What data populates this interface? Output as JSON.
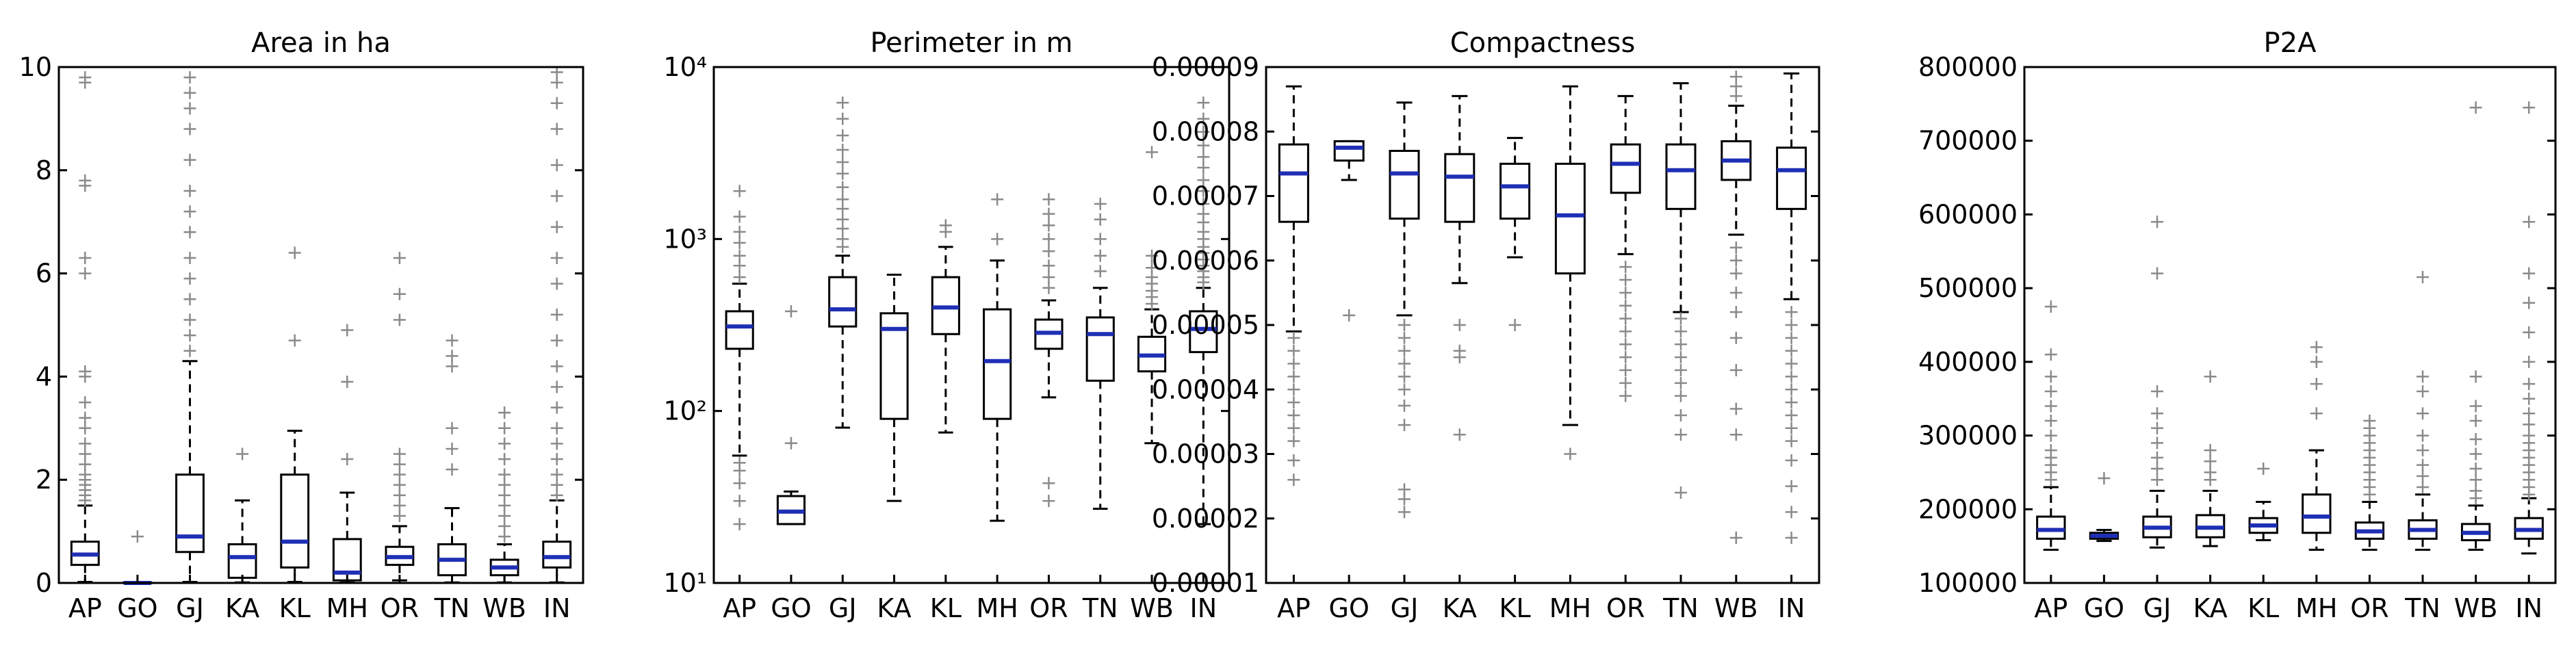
{
  "chart_data": [
    {
      "type": "boxplot",
      "title": "Area in ha",
      "scale": "linear",
      "ylim": [
        0,
        10
      ],
      "yticks": [
        0,
        2,
        4,
        6,
        8,
        10
      ],
      "ytick_labels": [
        "0",
        "2",
        "4",
        "6",
        "8",
        "10"
      ],
      "categories": [
        "AP",
        "GO",
        "GJ",
        "KA",
        "KL",
        "MH",
        "OR",
        "TN",
        "WB",
        "IN"
      ],
      "boxes": [
        {
          "q1": 0.35,
          "median": 0.55,
          "q3": 0.8,
          "whislo": 0.02,
          "whishi": 1.5,
          "fliers": [
            1.6,
            1.7,
            1.8,
            1.9,
            2.0,
            2.1,
            2.3,
            2.5,
            2.7,
            3.0,
            3.2,
            3.5,
            4.0,
            4.1,
            6.0,
            6.3,
            7.7,
            7.8,
            9.7,
            9.8
          ]
        },
        {
          "q1": 0.0,
          "median": 0.0,
          "q3": 0.01,
          "whislo": 0.0,
          "whishi": 0.02,
          "fliers": [
            0.9
          ]
        },
        {
          "q1": 0.6,
          "median": 0.9,
          "q3": 2.1,
          "whislo": 0.02,
          "whishi": 4.3,
          "fliers": [
            4.5,
            4.8,
            5.1,
            5.5,
            5.9,
            6.3,
            6.8,
            7.2,
            7.6,
            8.2,
            8.8,
            9.2,
            9.5,
            9.8
          ]
        },
        {
          "q1": 0.1,
          "median": 0.5,
          "q3": 0.75,
          "whislo": 0.01,
          "whishi": 1.6,
          "fliers": [
            2.5
          ]
        },
        {
          "q1": 0.3,
          "median": 0.8,
          "q3": 2.1,
          "whislo": 0.02,
          "whishi": 2.95,
          "fliers": [
            4.7,
            6.4
          ]
        },
        {
          "q1": 0.05,
          "median": 0.2,
          "q3": 0.85,
          "whislo": 0.01,
          "whishi": 1.75,
          "fliers": [
            2.4,
            3.9,
            4.9
          ]
        },
        {
          "q1": 0.35,
          "median": 0.5,
          "q3": 0.7,
          "whislo": 0.05,
          "whishi": 1.1,
          "fliers": [
            1.3,
            1.5,
            1.7,
            1.9,
            2.1,
            2.3,
            2.5,
            5.1,
            5.6,
            6.3
          ]
        },
        {
          "q1": 0.15,
          "median": 0.45,
          "q3": 0.75,
          "whislo": 0.01,
          "whishi": 1.45,
          "fliers": [
            2.2,
            2.6,
            3.0,
            4.2,
            4.4,
            4.7
          ]
        },
        {
          "q1": 0.15,
          "median": 0.3,
          "q3": 0.45,
          "whislo": 0.01,
          "whishi": 0.75,
          "fliers": [
            0.9,
            1.1,
            1.3,
            1.5,
            1.7,
            1.9,
            2.1,
            2.4,
            2.7,
            3.0,
            3.3
          ]
        },
        {
          "q1": 0.3,
          "median": 0.5,
          "q3": 0.8,
          "whislo": 0.01,
          "whishi": 1.6,
          "fliers": [
            1.7,
            1.9,
            2.1,
            2.4,
            2.7,
            3.0,
            3.4,
            3.8,
            4.2,
            4.7,
            5.2,
            5.8,
            6.3,
            6.9,
            7.5,
            8.1,
            8.8,
            9.3,
            9.7,
            9.9
          ]
        }
      ]
    },
    {
      "type": "boxplot",
      "title": "Perimeter in m",
      "scale": "log",
      "ylim": [
        10,
        10000
      ],
      "yticks": [
        10,
        100,
        1000,
        10000
      ],
      "ytick_labels": [
        "10¹",
        "10²",
        "10³",
        "10⁴"
      ],
      "categories": [
        "AP",
        "GO",
        "GJ",
        "KA",
        "KL",
        "MH",
        "OR",
        "TN",
        "WB",
        "IN"
      ],
      "boxes": [
        {
          "q1": 230,
          "median": 310,
          "q3": 380,
          "whislo": 55,
          "whishi": 550,
          "fliers": [
            22,
            30,
            38,
            45,
            50,
            600,
            700,
            800,
            950,
            1100,
            1350,
            1900
          ]
        },
        {
          "q1": 22,
          "median": 26,
          "q3": 32,
          "whislo": 22,
          "whishi": 34,
          "fliers": [
            65,
            380
          ]
        },
        {
          "q1": 310,
          "median": 390,
          "q3": 600,
          "whislo": 80,
          "whishi": 800,
          "fliers": [
            900,
            1000,
            1150,
            1300,
            1500,
            1700,
            2000,
            2400,
            2800,
            3300,
            4000,
            5000,
            6200
          ]
        },
        {
          "q1": 90,
          "median": 300,
          "q3": 370,
          "whislo": 30,
          "whishi": 620,
          "fliers": []
        },
        {
          "q1": 280,
          "median": 400,
          "q3": 600,
          "whislo": 75,
          "whishi": 900,
          "fliers": [
            1100,
            1200
          ]
        },
        {
          "q1": 90,
          "median": 195,
          "q3": 390,
          "whislo": 23,
          "whishi": 750,
          "fliers": [
            1000,
            1700
          ]
        },
        {
          "q1": 230,
          "median": 285,
          "q3": 340,
          "whislo": 120,
          "whishi": 440,
          "fliers": [
            30,
            38,
            520,
            600,
            700,
            850,
            1000,
            1200,
            1400,
            1700
          ]
        },
        {
          "q1": 150,
          "median": 280,
          "q3": 350,
          "whislo": 27,
          "whishi": 520,
          "fliers": [
            650,
            800,
            1000,
            1300,
            1600
          ]
        },
        {
          "q1": 170,
          "median": 210,
          "q3": 270,
          "whislo": 65,
          "whishi": 390,
          "fliers": [
            420,
            460,
            500,
            550,
            600,
            680,
            800,
            3200
          ]
        },
        {
          "q1": 220,
          "median": 300,
          "q3": 380,
          "whislo": 22,
          "whishi": 520,
          "fliers": [
            560,
            600,
            650,
            700,
            760,
            830,
            900,
            1000,
            1100,
            1250,
            1400,
            1600,
            1900,
            2200,
            2600,
            3000,
            3500,
            4200,
            5000,
            6200
          ]
        }
      ]
    },
    {
      "type": "boxplot",
      "title": "Compactness",
      "scale": "linear",
      "ylim": [
        1e-05,
        9e-05
      ],
      "yticks": [
        1e-05,
        2e-05,
        3e-05,
        4e-05,
        5e-05,
        6e-05,
        7e-05,
        8e-05,
        9e-05
      ],
      "ytick_labels": [
        "0.00001",
        "0.00002",
        "0.00003",
        "0.00004",
        "0.00005",
        "0.00006",
        "0.00007",
        "0.00008",
        "0.00009"
      ],
      "categories": [
        "AP",
        "GO",
        "GJ",
        "KA",
        "KL",
        "MH",
        "OR",
        "TN",
        "WB",
        "IN"
      ],
      "boxes": [
        {
          "q1": 6.6e-05,
          "median": 7.35e-05,
          "q3": 7.8e-05,
          "whislo": 4.9e-05,
          "whishi": 8.7e-05,
          "fliers": [
            2.6e-05,
            2.9e-05,
            3.2e-05,
            3.4e-05,
            3.6e-05,
            3.8e-05,
            4e-05,
            4.2e-05,
            4.4e-05,
            4.6e-05,
            4.8e-05
          ]
        },
        {
          "q1": 7.55e-05,
          "median": 7.75e-05,
          "q3": 7.85e-05,
          "whislo": 7.25e-05,
          "whishi": 7.85e-05,
          "fliers": [
            5.15e-05
          ]
        },
        {
          "q1": 6.65e-05,
          "median": 7.35e-05,
          "q3": 7.7e-05,
          "whislo": 5.15e-05,
          "whishi": 8.45e-05,
          "fliers": [
            2.1e-05,
            2.3e-05,
            2.45e-05,
            3.45e-05,
            3.75e-05,
            4e-05,
            4.2e-05,
            4.4e-05,
            4.6e-05,
            4.8e-05,
            5e-05
          ]
        },
        {
          "q1": 6.6e-05,
          "median": 7.3e-05,
          "q3": 7.65e-05,
          "whislo": 5.65e-05,
          "whishi": 8.55e-05,
          "fliers": [
            3.3e-05,
            4.5e-05,
            4.6e-05,
            5e-05
          ]
        },
        {
          "q1": 6.65e-05,
          "median": 7.15e-05,
          "q3": 7.5e-05,
          "whislo": 6.05e-05,
          "whishi": 7.9e-05,
          "fliers": [
            5e-05
          ]
        },
        {
          "q1": 5.8e-05,
          "median": 6.7e-05,
          "q3": 7.5e-05,
          "whislo": 3.45e-05,
          "whishi": 8.7e-05,
          "fliers": [
            3e-05
          ]
        },
        {
          "q1": 7.05e-05,
          "median": 7.5e-05,
          "q3": 7.8e-05,
          "whislo": 6.1e-05,
          "whishi": 8.55e-05,
          "fliers": [
            3.9e-05,
            4.1e-05,
            4.3e-05,
            4.5e-05,
            4.7e-05,
            4.9e-05,
            5.1e-05,
            5.3e-05,
            5.5e-05,
            5.7e-05,
            5.9e-05
          ]
        },
        {
          "q1": 6.8e-05,
          "median": 7.4e-05,
          "q3": 7.8e-05,
          "whislo": 5.2e-05,
          "whishi": 8.75e-05,
          "fliers": [
            2.4e-05,
            3.3e-05,
            3.6e-05,
            3.9e-05,
            4.1e-05,
            4.3e-05,
            4.5e-05,
            4.7e-05,
            4.9e-05,
            5.1e-05
          ]
        },
        {
          "q1": 7.25e-05,
          "median": 7.55e-05,
          "q3": 7.85e-05,
          "whislo": 6.4e-05,
          "whishi": 8.4e-05,
          "fliers": [
            1.7e-05,
            3.3e-05,
            3.7e-05,
            4.3e-05,
            4.8e-05,
            5.2e-05,
            5.5e-05,
            5.8e-05,
            6e-05,
            6.2e-05,
            8.55e-05,
            8.7e-05,
            8.85e-05
          ]
        },
        {
          "q1": 6.8e-05,
          "median": 7.4e-05,
          "q3": 7.75e-05,
          "whislo": 5.4e-05,
          "whishi": 8.9e-05,
          "fliers": [
            1.7e-05,
            2.1e-05,
            2.5e-05,
            2.9e-05,
            3.2e-05,
            3.4e-05,
            3.6e-05,
            3.8e-05,
            4e-05,
            4.2e-05,
            4.4e-05,
            4.6e-05,
            4.8e-05,
            5e-05,
            5.2e-05
          ]
        }
      ]
    },
    {
      "type": "boxplot",
      "title": "P2A",
      "scale": "linear",
      "ylim": [
        100000,
        800000
      ],
      "yticks": [
        100000,
        200000,
        300000,
        400000,
        500000,
        600000,
        700000,
        800000
      ],
      "ytick_labels": [
        "100000",
        "200000",
        "300000",
        "400000",
        "500000",
        "600000",
        "700000",
        "800000"
      ],
      "categories": [
        "AP",
        "GO",
        "GJ",
        "KA",
        "KL",
        "MH",
        "OR",
        "TN",
        "WB",
        "IN"
      ],
      "boxes": [
        {
          "q1": 160000,
          "median": 172000,
          "q3": 190000,
          "whislo": 145000,
          "whishi": 230000,
          "fliers": [
            240000,
            250000,
            260000,
            270000,
            280000,
            300000,
            320000,
            340000,
            360000,
            380000,
            410000,
            475000
          ]
        },
        {
          "q1": 160000,
          "median": 164000,
          "q3": 168000,
          "whislo": 157000,
          "whishi": 172000,
          "fliers": [
            242000
          ]
        },
        {
          "q1": 162000,
          "median": 175000,
          "q3": 190000,
          "whislo": 148000,
          "whishi": 225000,
          "fliers": [
            240000,
            255000,
            270000,
            290000,
            310000,
            330000,
            360000,
            520000,
            590000
          ]
        },
        {
          "q1": 162000,
          "median": 175000,
          "q3": 192000,
          "whislo": 150000,
          "whishi": 225000,
          "fliers": [
            240000,
            250000,
            265000,
            280000,
            380000
          ]
        },
        {
          "q1": 168000,
          "median": 178000,
          "q3": 188000,
          "whislo": 158000,
          "whishi": 210000,
          "fliers": [
            255000
          ]
        },
        {
          "q1": 168000,
          "median": 190000,
          "q3": 220000,
          "whislo": 145000,
          "whishi": 280000,
          "fliers": [
            330000,
            370000,
            400000,
            420000
          ]
        },
        {
          "q1": 160000,
          "median": 170000,
          "q3": 182000,
          "whislo": 145000,
          "whishi": 210000,
          "fliers": [
            220000,
            230000,
            240000,
            250000,
            260000,
            270000,
            280000,
            290000,
            300000,
            310000,
            320000
          ]
        },
        {
          "q1": 160000,
          "median": 172000,
          "q3": 185000,
          "whislo": 145000,
          "whishi": 220000,
          "fliers": [
            230000,
            245000,
            260000,
            280000,
            300000,
            330000,
            360000,
            380000,
            515000
          ]
        },
        {
          "q1": 158000,
          "median": 168000,
          "q3": 180000,
          "whislo": 145000,
          "whishi": 205000,
          "fliers": [
            215000,
            225000,
            240000,
            255000,
            275000,
            295000,
            320000,
            340000,
            380000,
            745000
          ]
        },
        {
          "q1": 160000,
          "median": 172000,
          "q3": 188000,
          "whislo": 140000,
          "whishi": 215000,
          "fliers": [
            220000,
            230000,
            240000,
            250000,
            260000,
            270000,
            280000,
            290000,
            300000,
            315000,
            330000,
            350000,
            370000,
            400000,
            440000,
            480000,
            520000,
            590000,
            745000
          ]
        }
      ]
    }
  ]
}
